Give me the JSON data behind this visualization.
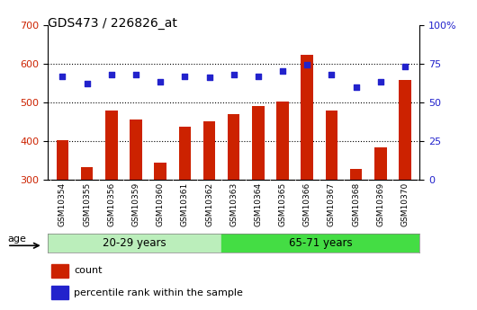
{
  "title": "GDS473 / 226826_at",
  "samples": [
    "GSM10354",
    "GSM10355",
    "GSM10356",
    "GSM10359",
    "GSM10360",
    "GSM10361",
    "GSM10362",
    "GSM10363",
    "GSM10364",
    "GSM10365",
    "GSM10366",
    "GSM10367",
    "GSM10368",
    "GSM10369",
    "GSM10370"
  ],
  "counts": [
    403,
    332,
    478,
    456,
    344,
    437,
    452,
    470,
    490,
    503,
    622,
    478,
    328,
    383,
    557
  ],
  "percentile": [
    67,
    62,
    68,
    68,
    63,
    67,
    66,
    68,
    67,
    70,
    74,
    68,
    60,
    63,
    73
  ],
  "groups": [
    "20-29 years",
    "65-71 years"
  ],
  "group_sizes": [
    7,
    8
  ],
  "ylim_left": [
    300,
    700
  ],
  "ylim_right": [
    0,
    100
  ],
  "yticks_left": [
    300,
    400,
    500,
    600,
    700
  ],
  "yticks_right": [
    0,
    25,
    50,
    75,
    100
  ],
  "bar_color": "#cc2200",
  "dot_color": "#2222cc",
  "bg_color_xticklabels": "#c8c8c8",
  "group_color_1": "#bbeebb",
  "group_color_2": "#44dd44",
  "legend_marker_red": "#cc2200",
  "legend_marker_blue": "#2222cc",
  "age_label": "age",
  "group1_count": 7,
  "group2_count": 8
}
